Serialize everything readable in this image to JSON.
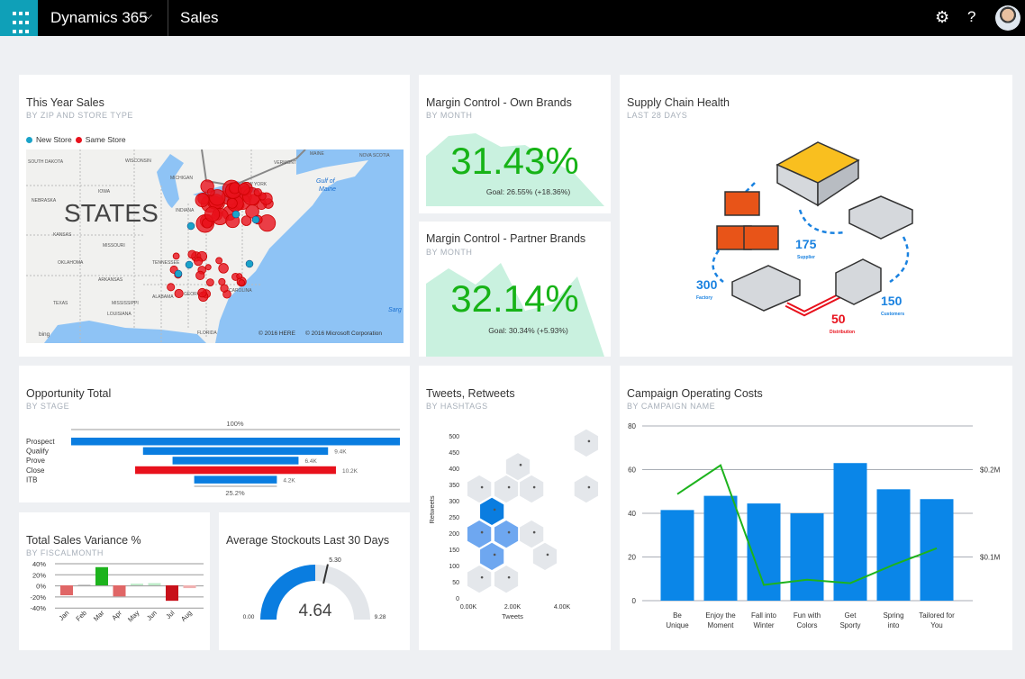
{
  "topbar": {
    "app": "Dynamics 365",
    "area": "Sales",
    "icons": [
      "waffle-icon",
      "chevron-down-icon",
      "gear-icon",
      "help-icon",
      "avatar"
    ]
  },
  "tiles": {
    "map": {
      "title": "This Year Sales",
      "subtitle": "BY ZIP AND STORE TYPE",
      "legend": [
        {
          "label": "New Store",
          "color": "#1aa3c9"
        },
        {
          "label": "Same Store",
          "color": "#e8111c"
        }
      ],
      "label": "STATES",
      "states": [
        "SOUTH DAKOTA",
        "WISCONSIN",
        "MICHIGAN",
        "IOWA",
        "NEBRASKA",
        "KANSAS",
        "MISSOURI",
        "INDIANA",
        "OKLAHOMA",
        "TENNESSEE",
        "ARKANSAS",
        "ALABAMA",
        "GEORGIA",
        "TEXAS",
        "MISSISSIPPI",
        "LOUISIANA",
        "FLORIDA",
        "NEW YORK",
        "VERMONT",
        "MAINE",
        "NOVA SCOTIA",
        "CAROLINA"
      ],
      "water": [
        "Gulf of",
        "Maine",
        "Sarg"
      ],
      "credits": [
        "© 2016 HERE",
        "© 2016 Microsoft Corporation"
      ],
      "bing": "bing"
    },
    "own": {
      "title": "Margin Control - Own Brands",
      "subtitle": "BY MONTH",
      "value": "31.43%",
      "goal": "Goal: 26.55% (+18.36%)"
    },
    "partner": {
      "title": "Margin Control - Partner Brands",
      "subtitle": "BY MONTH",
      "value": "32.14%",
      "goal": "Goal: 30.34% (+5.93%)"
    },
    "supply": {
      "title": "Supply Chain Health",
      "subtitle": "LAST 28 DAYS",
      "nodes": [
        {
          "value": "175",
          "label": "Supplier"
        },
        {
          "value": "300",
          "label": "Factory"
        },
        {
          "value": "150",
          "label": "Customers"
        },
        {
          "value": "50",
          "label": "Distribution"
        }
      ]
    },
    "opportunity": {
      "title": "Opportunity Total",
      "subtitle": "BY STAGE",
      "top_label": "100%",
      "bottom_label": "25.2%"
    },
    "tweets": {
      "title": "Tweets, Retweets",
      "subtitle": "BY HASHTAGS"
    },
    "campaign": {
      "title": "Campaign Operating Costs",
      "subtitle": "BY CAMPAIGN NAME"
    },
    "variance": {
      "title": "Total Sales Variance %",
      "subtitle": "BY FISCALMONTH"
    },
    "stockouts": {
      "title": "Average Stockouts Last 30 Days"
    }
  },
  "chart_data": [
    {
      "type": "bar",
      "name": "opportunity",
      "categories": [
        "Prospect",
        "Qualify",
        "Prove",
        "Close",
        "ITB"
      ],
      "values": [
        16.7,
        9.4,
        6.4,
        10.2,
        4.2
      ],
      "labels": [
        "",
        "9.4K",
        "6.4K",
        "10.2K",
        "4.2K"
      ],
      "colors": [
        "#0a7de0",
        "#0a7de0",
        "#0a7de0",
        "#e8111c",
        "#0a7de0"
      ]
    },
    {
      "type": "bar",
      "name": "variance",
      "categories": [
        "Jan",
        "Feb",
        "Mar",
        "Apr",
        "May",
        "Jun",
        "Jul",
        "Aug"
      ],
      "values": [
        -18,
        0,
        33,
        -20,
        3,
        4,
        -28,
        -5
      ],
      "yticks": [
        "40%",
        "20%",
        "0%",
        "-20%",
        "-40%"
      ],
      "ylim": [
        -40,
        40
      ]
    },
    {
      "type": "gauge",
      "name": "stockouts",
      "min": 0,
      "max": 9.28,
      "value": 4.64,
      "target": 5.3,
      "min_label": "0.00",
      "max_label": "9.28",
      "value_label": "4.64",
      "target_label": "5.30"
    },
    {
      "type": "heatmap",
      "name": "tweets",
      "xlabel": "Tweets",
      "ylabel": "Retweets",
      "xticks": [
        "0.00K",
        "2.00K",
        "4.00K"
      ],
      "yticks": [
        "500",
        "450",
        "400",
        "350",
        "300",
        "250",
        "200",
        "150",
        "100",
        "50",
        "0"
      ],
      "cells": [
        [
          4.76,
          478,
          0
        ],
        [
          4.76,
          336,
          0
        ],
        [
          2.0,
          405,
          0
        ],
        [
          0.44,
          336,
          0
        ],
        [
          1.53,
          336,
          0
        ],
        [
          2.55,
          336,
          0
        ],
        [
          0.95,
          267,
          3
        ],
        [
          0.44,
          197,
          2
        ],
        [
          1.53,
          197,
          2
        ],
        [
          2.55,
          197,
          0
        ],
        [
          0.95,
          128,
          2
        ],
        [
          3.09,
          128,
          0
        ],
        [
          0.44,
          58,
          0
        ],
        [
          1.53,
          58,
          0
        ]
      ]
    },
    {
      "type": "bar",
      "name": "campaign",
      "categories": [
        "Be Unique",
        "Enjoy the Moment",
        "Fall into Winter",
        "Fun with Colors",
        "Get Sporty",
        "Spring into",
        "Tailored for You"
      ],
      "values": [
        41.5,
        48,
        44.5,
        40,
        63,
        51,
        46.5
      ],
      "line_values_musd": [
        0.172,
        0.205,
        0.068,
        0.074,
        0.07,
        0.091,
        0.11
      ],
      "yticks": [
        "0",
        "20",
        "40",
        "60",
        "80"
      ],
      "y2ticks": [
        "$0.1M",
        "$0.2M"
      ],
      "ylim": [
        0,
        80
      ],
      "bar_color": "#0a86e8",
      "line_color": "#1db31d"
    }
  ]
}
